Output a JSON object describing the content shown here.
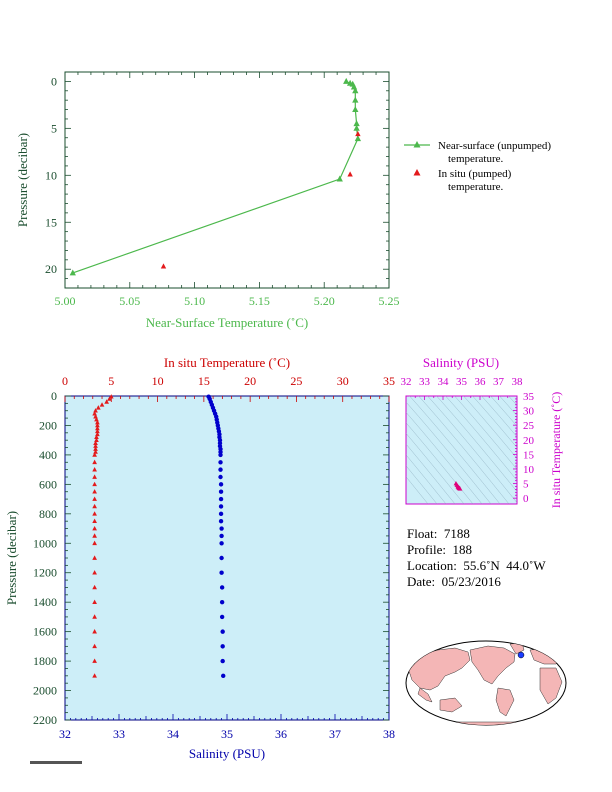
{
  "top_chart_data": {
    "type": "line",
    "xlabel": "Near-Surface Temperature (˚C)",
    "ylabel": "Pressure (decibar)",
    "xlim": [
      5.0,
      5.25
    ],
    "ylim": [
      22,
      -1
    ],
    "xticks": [
      "5.00",
      "5.05",
      "5.10",
      "5.15",
      "5.20",
      "5.25"
    ],
    "yticks": [
      "0",
      "5",
      "10",
      "15",
      "20"
    ],
    "series": [
      {
        "name": "Near-surface (unpumped) temperature.",
        "color": "#4cb84c",
        "marker": "triangle",
        "x": [
          5.217,
          5.22,
          5.222,
          5.223,
          5.224,
          5.224,
          5.224,
          5.225,
          5.225,
          5.226,
          5.212,
          5.006
        ],
        "y": [
          0.0,
          0.2,
          0.3,
          0.6,
          1.0,
          2.0,
          3.0,
          4.5,
          5.0,
          6.1,
          10.4,
          20.4
        ]
      },
      {
        "name": "In situ (pumped) temperature.",
        "color": "#e31a1c",
        "marker": "triangle",
        "x": [
          5.226,
          5.22,
          5.076
        ],
        "y": [
          5.6,
          9.9,
          19.7
        ]
      }
    ],
    "legend": [
      {
        "line1": "Near-surface (unpumped)",
        "line2": "temperature."
      },
      {
        "line1": "In situ (pumped)",
        "line2": "temperature."
      }
    ]
  },
  "profile_chart_data": {
    "type": "line",
    "title_top": "In situ Temperature (˚C)",
    "xlabel_bottom": "Salinity (PSU)",
    "ylabel": "Pressure (decibar)",
    "temperature_axis": [
      0,
      35
    ],
    "salinity_axis": [
      32,
      38
    ],
    "pressure_axis": [
      2200,
      0
    ],
    "temperature_ticks": [
      "0",
      "5",
      "10",
      "15",
      "20",
      "25",
      "30",
      "35"
    ],
    "salinity_ticks": [
      "32",
      "33",
      "34",
      "35",
      "36",
      "37",
      "38"
    ],
    "pressure_ticks": [
      "0",
      "200",
      "400",
      "600",
      "800",
      "1000",
      "1200",
      "1400",
      "1600",
      "1800",
      "2000",
      "2200"
    ],
    "series": [
      {
        "name": "In situ Temperature",
        "axis": "temperature",
        "color": "#e31a1c",
        "marker": "triangle",
        "x": [
          5.0,
          4.8,
          4.5,
          4.0,
          3.6,
          3.3,
          3.2,
          3.3,
          3.4,
          3.5,
          3.5,
          3.5,
          3.5,
          3.5,
          3.4,
          3.4,
          3.3,
          3.3,
          3.3,
          3.3,
          3.2,
          3.2,
          3.2,
          3.2,
          3.2,
          3.2,
          3.2,
          3.2,
          3.2,
          3.2,
          3.2,
          3.2,
          3.2,
          3.2,
          3.2,
          3.2,
          3.2,
          3.2,
          3.2,
          3.2,
          3.2,
          3.2
        ],
        "y": [
          5,
          20,
          40,
          60,
          80,
          100,
          120,
          140,
          160,
          180,
          200,
          220,
          240,
          260,
          280,
          300,
          320,
          340,
          360,
          380,
          400,
          450,
          500,
          550,
          600,
          650,
          700,
          750,
          800,
          850,
          900,
          950,
          1000,
          1100,
          1200,
          1300,
          1400,
          1500,
          1600,
          1700,
          1800,
          1900
        ]
      },
      {
        "name": "Salinity",
        "axis": "salinity",
        "color": "#0000cc",
        "marker": "circle",
        "x": [
          34.66,
          34.68,
          34.7,
          34.72,
          34.74,
          34.76,
          34.78,
          34.8,
          34.81,
          34.82,
          34.83,
          34.84,
          34.85,
          34.86,
          34.86,
          34.87,
          34.87,
          34.87,
          34.88,
          34.88,
          34.88,
          34.88,
          34.88,
          34.88,
          34.89,
          34.89,
          34.89,
          34.89,
          34.89,
          34.89,
          34.9,
          34.9,
          34.9,
          34.9,
          34.9,
          34.91,
          34.91,
          34.91,
          34.92,
          34.92,
          34.92,
          34.93
        ],
        "y": [
          5,
          20,
          40,
          60,
          80,
          100,
          120,
          140,
          160,
          180,
          200,
          220,
          240,
          260,
          280,
          300,
          320,
          340,
          360,
          380,
          400,
          450,
          500,
          550,
          600,
          650,
          700,
          750,
          800,
          850,
          900,
          950,
          1000,
          1100,
          1200,
          1300,
          1400,
          1500,
          1600,
          1700,
          1800,
          1900
        ]
      }
    ]
  },
  "ts_chart_data": {
    "type": "scatter",
    "title": "Salinity (PSU)",
    "ylabel": "In situ Temperature (˚C)",
    "salinity_ticks": [
      "32",
      "33",
      "34",
      "35",
      "36",
      "37",
      "38"
    ],
    "temperature_ticks": [
      "0",
      "5",
      "10",
      "15",
      "20",
      "25",
      "30",
      "35"
    ],
    "xlim": [
      32,
      38
    ],
    "ylim": [
      -2,
      35
    ],
    "color": "#e0007a",
    "points_salinity": [
      34.7,
      34.75,
      34.8,
      34.82,
      34.85,
      34.86,
      34.88,
      34.9,
      34.92
    ],
    "points_temperature": [
      5.0,
      4.5,
      4.0,
      3.8,
      3.6,
      3.5,
      3.4,
      3.3,
      3.2
    ]
  },
  "float_info": {
    "float": "Float:  7188",
    "profile": "Profile:  188",
    "location": "Location:  55.6˚N  44.0˚W",
    "date": "Date:  05/23/2016"
  },
  "map": {
    "land_color": "#f4b6b6",
    "marker_color": "#1a3cff"
  },
  "colors": {
    "green": "#4cb84c",
    "red": "#e31a1c",
    "blue": "#0000cc",
    "magenta": "#cc00cc",
    "profile_bg": "#cdeef8",
    "axis_dark": "#1a4d2e"
  }
}
